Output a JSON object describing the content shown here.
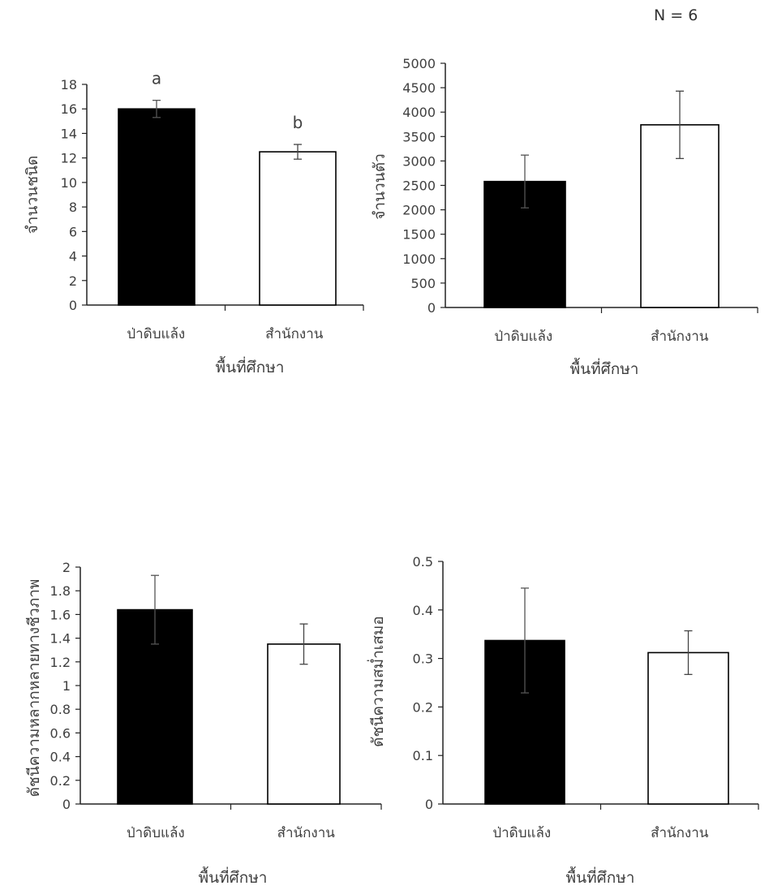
{
  "annotation": "N = 6",
  "chart_data": [
    {
      "type": "bar",
      "categories": [
        "ป่าดิบแล้ง",
        "สำนักงาน"
      ],
      "values": [
        16.0,
        12.5
      ],
      "errors": [
        0.7,
        0.6
      ],
      "bar_colors": [
        "#000000",
        "#ffffff"
      ],
      "significance_labels": [
        "a",
        "b"
      ],
      "xlabel": "พื้นที่ศึกษา",
      "ylabel": "จำนวนชนิด",
      "ylim": [
        0,
        18
      ],
      "yticks": [
        0,
        2,
        4,
        6,
        8,
        10,
        12,
        14,
        16,
        18
      ],
      "ytick_labels": [
        "0",
        "2",
        "4",
        "6",
        "8",
        "10",
        "12",
        "14",
        "16",
        "18"
      ]
    },
    {
      "type": "bar",
      "categories": [
        "ป่าดิบแล้ง",
        "สำนักงาน"
      ],
      "values": [
        2580,
        3740
      ],
      "errors": [
        540,
        690
      ],
      "bar_colors": [
        "#000000",
        "#ffffff"
      ],
      "xlabel": "พื้นที่ศึกษา",
      "ylabel": "จำนวนตัว",
      "ylim": [
        0,
        5000
      ],
      "yticks": [
        0,
        500,
        1000,
        1500,
        2000,
        2500,
        3000,
        3500,
        4000,
        4500,
        5000
      ],
      "ytick_labels": [
        "0",
        "500",
        "1000",
        "1500",
        "2000",
        "2500",
        "3000",
        "3500",
        "4000",
        "4500",
        "5000"
      ]
    },
    {
      "type": "bar",
      "categories": [
        "ป่าดิบแล้ง",
        "สำนักงาน"
      ],
      "values": [
        1.64,
        1.35
      ],
      "errors": [
        0.29,
        0.17
      ],
      "bar_colors": [
        "#000000",
        "#ffffff"
      ],
      "xlabel": "พื้นที่ศึกษา",
      "ylabel": "ดัชนีความหลากหลายทางชีวภาพ",
      "ylim": [
        0,
        2
      ],
      "yticks": [
        0,
        0.2,
        0.4,
        0.6,
        0.8,
        1,
        1.2,
        1.4,
        1.6,
        1.8,
        2
      ],
      "ytick_labels": [
        "0",
        "0.2",
        "0.4",
        "0.6",
        "0.8",
        "1",
        "1.2",
        "1.4",
        "1.6",
        "1.8",
        "2"
      ]
    },
    {
      "type": "bar",
      "categories": [
        "ป่าดิบแล้ง",
        "สำนักงาน"
      ],
      "values": [
        0.337,
        0.312
      ],
      "errors": [
        0.108,
        0.045
      ],
      "bar_colors": [
        "#000000",
        "#ffffff"
      ],
      "xlabel": "พื้นที่ศึกษา",
      "ylabel": "ดัชนีความสม่ำเสมอ",
      "ylim": [
        0,
        0.5
      ],
      "yticks": [
        0,
        0.1,
        0.2,
        0.3,
        0.4,
        0.5
      ],
      "ytick_labels": [
        "0",
        "0.1",
        "0.2",
        "0.3",
        "0.4",
        "0.5"
      ]
    }
  ]
}
